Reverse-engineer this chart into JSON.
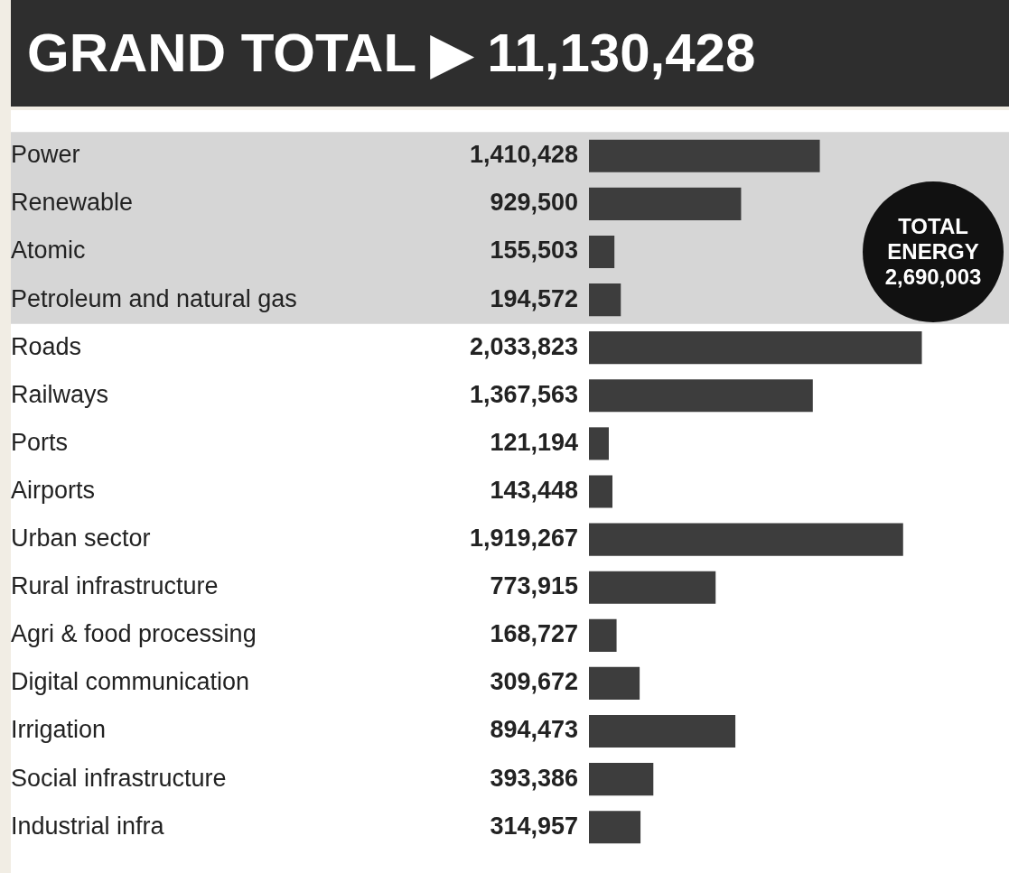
{
  "chart_data": {
    "type": "bar",
    "orientation": "horizontal",
    "title": "GRAND TOTAL ▶ 11,130,428",
    "categories": [
      "Power",
      "Renewable",
      "Atomic",
      "Petroleum and natural gas",
      "Roads",
      "Railways",
      "Ports",
      "Airports",
      "Urban sector",
      "Rural infrastructure",
      "Agri & food processing",
      "Digital communication",
      "Irrigation",
      "Social infrastructure",
      "Industrial infra"
    ],
    "values": [
      1410428,
      929500,
      155503,
      194572,
      2033823,
      1367563,
      121194,
      143448,
      1919267,
      773915,
      168727,
      309672,
      894473,
      393386,
      314957
    ],
    "value_labels": [
      "1,410,428",
      "929,500",
      "155,503",
      "194,572",
      "2,033,823",
      "1,367,563",
      "121,194",
      "143,448",
      "1,919,267",
      "773,915",
      "168,727",
      "309,672",
      "894,473",
      "393,386",
      "314,957"
    ],
    "color": "#3d3d3d",
    "bands": [
      {
        "axis": "y",
        "from": "Power",
        "to": "Petroleum and natural gas",
        "color": "#d6d6d6"
      }
    ],
    "annotations": [
      "TOTAL ENERGY 2,690,003"
    ],
    "legend": false,
    "grid": false
  }
}
